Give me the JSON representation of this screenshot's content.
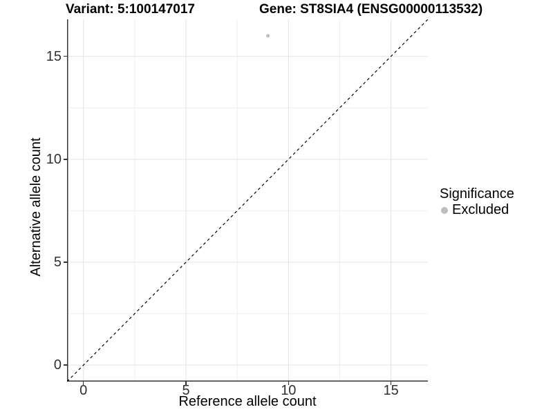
{
  "chart_data": {
    "type": "scatter",
    "title_left": "Variant: 5:100147017",
    "title_right": "Gene: ST8SIA4 (ENSG00000113532)",
    "xlabel": "Reference allele count",
    "ylabel": "Alternative allele count",
    "xlim": [
      -0.8,
      16.8
    ],
    "ylim": [
      -0.8,
      16.8
    ],
    "x_ticks": [
      0,
      5,
      10,
      15
    ],
    "y_ticks": [
      0,
      5,
      10,
      15
    ],
    "x_minor_ticks": [
      2.5,
      7.5,
      12.5
    ],
    "y_minor_ticks": [
      2.5,
      7.5,
      12.5
    ],
    "grid": "major and minor, light gray on white",
    "series": [
      {
        "name": "Excluded",
        "color": "#bebebe",
        "points": [
          {
            "x": 9,
            "y": 16
          }
        ]
      }
    ],
    "reference_line": {
      "type": "identity y=x",
      "style": "dashed",
      "color": "#000000",
      "from": [
        -0.8,
        -0.8
      ],
      "to": [
        16.8,
        16.8
      ]
    },
    "legend": {
      "title": "Significance",
      "position": "right",
      "items": [
        {
          "label": "Excluded",
          "color": "#bebebe",
          "marker": "circle"
        }
      ]
    }
  },
  "colors": {
    "background": "#ffffff",
    "panel_background": "#ffffff",
    "grid_major": "#e3e3e3",
    "grid_minor": "#efefef",
    "axis_line": "#333333",
    "tick_label": "#303030",
    "title_text": "#000000"
  }
}
